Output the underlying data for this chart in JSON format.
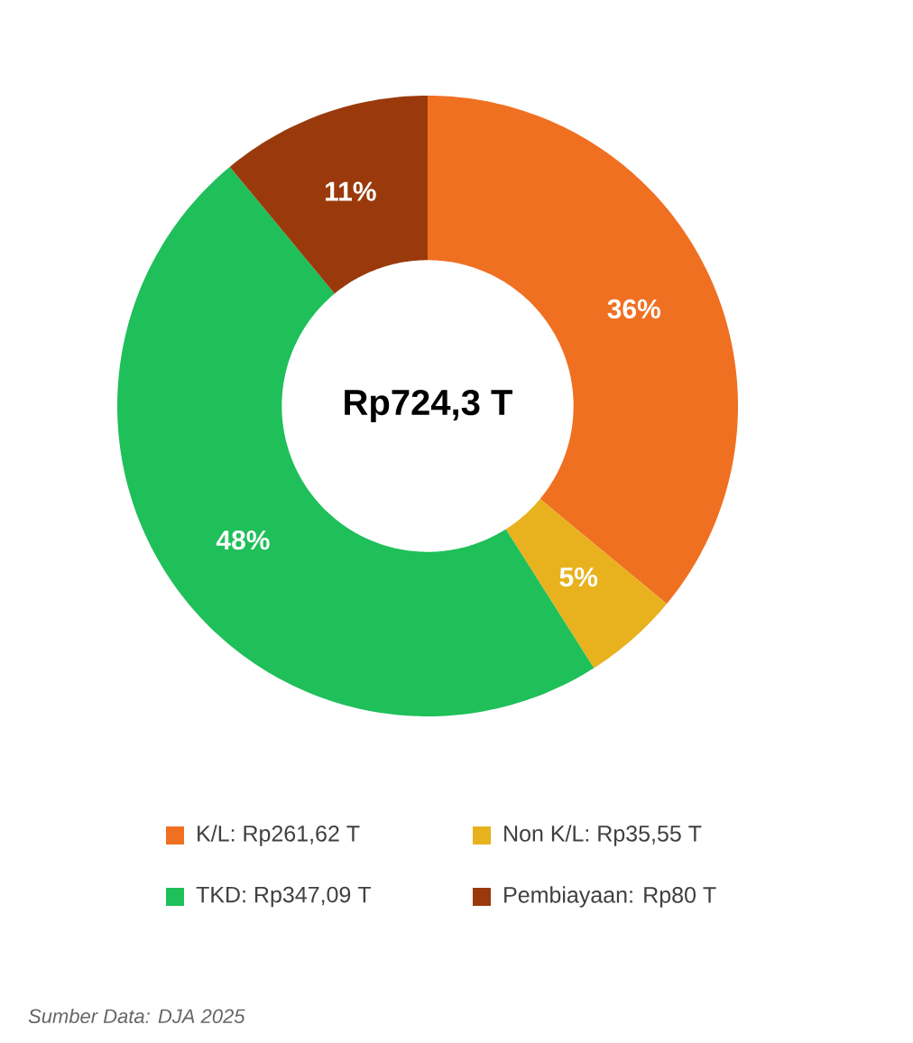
{
  "chart_data": {
    "type": "donut",
    "categories": [
      "K/L: Rp261,62 T",
      "Non K/L: Rp35,55 T",
      "TKD: Rp347,09 T",
      "Pembiayaan: Rp80 T"
    ],
    "values": [
      36,
      5,
      48,
      11
    ],
    "colors": [
      "#f07022",
      "#e8b21e",
      "#1fbf5a",
      "#9a3a0c"
    ],
    "value_labels": [
      "36%",
      "5%",
      "48%",
      "11%"
    ],
    "annotations": [
      "Rp724,3 T",
      "Sumber Data: DJA 2025"
    ],
    "legend": "bottom"
  }
}
